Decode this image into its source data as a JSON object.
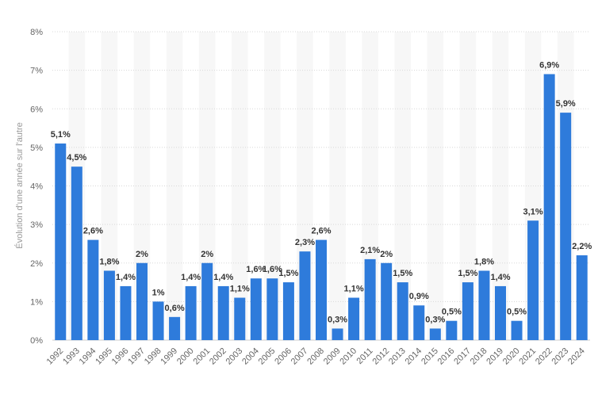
{
  "chart_data": {
    "type": "bar",
    "title": "",
    "xlabel": "",
    "ylabel": "Évolution d'une année sur l'autre",
    "ylim": [
      0,
      8
    ],
    "y_ticks": [
      "0%",
      "1%",
      "2%",
      "3%",
      "4%",
      "5%",
      "6%",
      "7%",
      "8%"
    ],
    "grid": "horizontal dotted",
    "bar_color": "#2e7bdb",
    "categories": [
      "1992",
      "1993",
      "1994",
      "1995",
      "1996",
      "1997",
      "1998",
      "1999",
      "2000",
      "2001",
      "2002",
      "2003",
      "2004",
      "2005",
      "2006",
      "2007",
      "2008",
      "2009",
      "2010",
      "2011",
      "2012",
      "2013",
      "2014",
      "2015",
      "2016",
      "2017",
      "2018",
      "2019",
      "2020",
      "2021",
      "2022",
      "2023",
      "2024"
    ],
    "values": [
      5.1,
      4.5,
      2.6,
      1.8,
      1.4,
      2,
      1,
      0.6,
      1.4,
      2,
      1.4,
      1.1,
      1.6,
      1.6,
      1.5,
      2.3,
      2.6,
      0.3,
      1.1,
      2.1,
      2,
      1.5,
      0.9,
      0.3,
      0.5,
      1.5,
      1.8,
      1.4,
      0.5,
      3.1,
      6.9,
      5.9,
      2.2
    ],
    "labels": [
      "5,1%",
      "4,5%",
      "2,6%",
      "1,8%",
      "1,4%",
      "2%",
      "1%",
      "0,6%",
      "1,4%",
      "2%",
      "1,4%",
      "1,1%",
      "1,6%",
      "1,6%",
      "1,5%",
      "2,3%",
      "2,6%",
      "0,3%",
      "1,1%",
      "2,1%",
      "2%",
      "1,5%",
      "0,9%",
      "0,3%",
      "0,5%",
      "1,5%",
      "1,8%",
      "1,4%",
      "0,5%",
      "3,1%",
      "6,9%",
      "5,9%",
      "2,2%"
    ]
  }
}
